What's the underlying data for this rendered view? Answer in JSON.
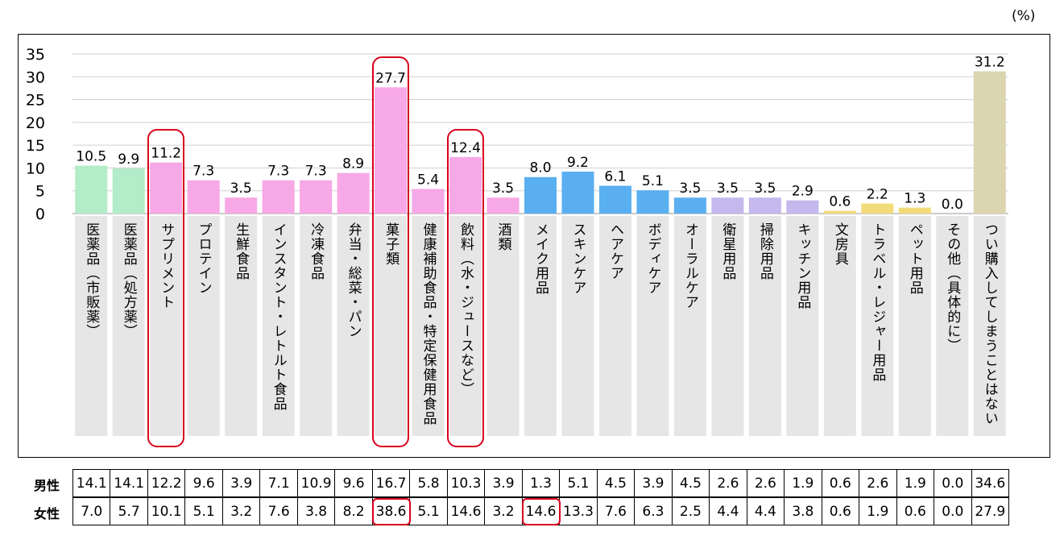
{
  "unit": "(%)",
  "colors": {
    "medicine": "#b3ecc8",
    "food": "#f7a8e6",
    "cosmetics": "#5aaff0",
    "household": "#c5b8ec",
    "stationery": "#f2dc7a",
    "none": "#dbd5b0",
    "label_bg": "#e6e6e6",
    "highlight": "#d8001c"
  },
  "chart_data": {
    "type": "bar",
    "categories": [
      "医薬品（市販薬）",
      "医薬品（処方薬）",
      "サプリメント",
      "プロテイン",
      "生鮮食品",
      "インスタント・レトルト食品",
      "冷凍食品",
      "弁当・総菜・パン",
      "菓子類",
      "健康補助食品・特定保健用食品",
      "飲料（水・ジュースなど）",
      "酒類",
      "メイク用品",
      "スキンケア",
      "ヘアケア",
      "ボディケア",
      "オーラルケア",
      "衛星用品",
      "掃除用品",
      "キッチン用品",
      "文房具",
      "トラベル・レジャー用品",
      "ペット用品",
      "その他（具体的に）",
      "つい購入してしまうことはない"
    ],
    "values": [
      10.5,
      9.9,
      11.2,
      7.3,
      3.5,
      7.3,
      7.3,
      8.9,
      27.7,
      5.4,
      12.4,
      3.5,
      8.0,
      9.2,
      6.1,
      5.1,
      3.5,
      3.5,
      3.5,
      2.9,
      0.6,
      2.2,
      1.3,
      0.0,
      31.2
    ],
    "value_labels": [
      "10.5",
      "9.9",
      "11.2",
      "7.3",
      "3.5",
      "7.3",
      "7.3",
      "8.9",
      "27.7",
      "5.4",
      "12.4",
      "3.5",
      "8.0",
      "9.2",
      "6.1",
      "5.1",
      "3.5",
      "3.5",
      "3.5",
      "2.9",
      "0.6",
      "2.2",
      "1.3",
      "0.0",
      "31.2"
    ],
    "groups": [
      "medicine",
      "medicine",
      "food",
      "food",
      "food",
      "food",
      "food",
      "food",
      "food",
      "food",
      "food",
      "food",
      "cosmetics",
      "cosmetics",
      "cosmetics",
      "cosmetics",
      "cosmetics",
      "household",
      "household",
      "household",
      "stationery",
      "stationery",
      "stationery",
      "stationery",
      "none"
    ],
    "ylim": [
      0,
      35
    ],
    "yticks": [
      0,
      5,
      10,
      15,
      20,
      25,
      30,
      35
    ],
    "grid": true,
    "highlighted_categories": [
      "サプリメント",
      "菓子類",
      "飲料（水・ジュースなど）"
    ],
    "table": {
      "rows": [
        {
          "label": "男性",
          "values": [
            "14.1",
            "14.1",
            "12.2",
            "9.6",
            "3.9",
            "7.1",
            "10.9",
            "9.6",
            "16.7",
            "5.8",
            "10.3",
            "3.9",
            "1.3",
            "5.1",
            "4.5",
            "3.9",
            "4.5",
            "2.6",
            "2.6",
            "1.9",
            "0.6",
            "2.6",
            "1.9",
            "0.0",
            "34.6"
          ]
        },
        {
          "label": "女性",
          "values": [
            "7.0",
            "5.7",
            "10.1",
            "5.1",
            "3.2",
            "7.6",
            "3.8",
            "8.2",
            "38.6",
            "5.1",
            "14.6",
            "3.2",
            "14.6",
            "13.3",
            "7.6",
            "6.3",
            "2.5",
            "4.4",
            "4.4",
            "3.8",
            "0.6",
            "1.9",
            "0.6",
            "0.0",
            "27.9"
          ]
        }
      ],
      "highlighted_cells": [
        {
          "row": 1,
          "col": 8
        },
        {
          "row": 1,
          "col": 12
        }
      ]
    }
  }
}
